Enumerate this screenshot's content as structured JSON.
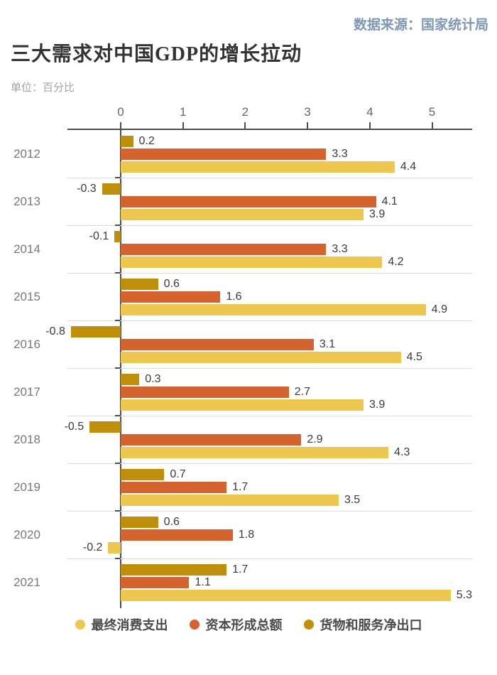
{
  "source": "数据来源：国家统计局",
  "title": "三大需求对中国GDP的增长拉动",
  "unit": "单位：百分比",
  "chart_data": {
    "type": "bar",
    "orientation": "horizontal",
    "title": "三大需求对中国GDP的增长拉动",
    "unit_label": "单位：百分比",
    "source": "数据来源：国家统计局",
    "categories": [
      "2012",
      "2013",
      "2014",
      "2015",
      "2016",
      "2017",
      "2018",
      "2019",
      "2020",
      "2021"
    ],
    "series": [
      {
        "name": "最终消费支出",
        "color": "#edc74e",
        "values": [
          4.4,
          3.9,
          4.2,
          4.9,
          4.5,
          3.9,
          4.3,
          3.5,
          -0.2,
          5.3
        ]
      },
      {
        "name": "资本形成总额",
        "color": "#d4632e",
        "values": [
          3.3,
          4.1,
          3.3,
          1.6,
          3.1,
          2.7,
          2.9,
          1.7,
          1.8,
          1.1
        ]
      },
      {
        "name": "货物和服务净出口",
        "color": "#c08f0a",
        "values": [
          0.2,
          -0.3,
          -0.1,
          0.6,
          -0.8,
          0.3,
          -0.5,
          0.7,
          0.6,
          1.7
        ]
      }
    ],
    "bar_order_top_to_bottom": [
      "货物和服务净出口",
      "资本形成总额",
      "最终消费支出"
    ],
    "x_ticks": [
      "0",
      "1",
      "2",
      "3",
      "4",
      "5"
    ],
    "xlim": [
      -0.85,
      5.65
    ],
    "value_labels": "one-decimal, at bar ends",
    "grid": "light row separators between year groups",
    "legend_position": "bottom",
    "axis_color": "#4d4d4d",
    "separator_color": "#dcdcdc"
  }
}
